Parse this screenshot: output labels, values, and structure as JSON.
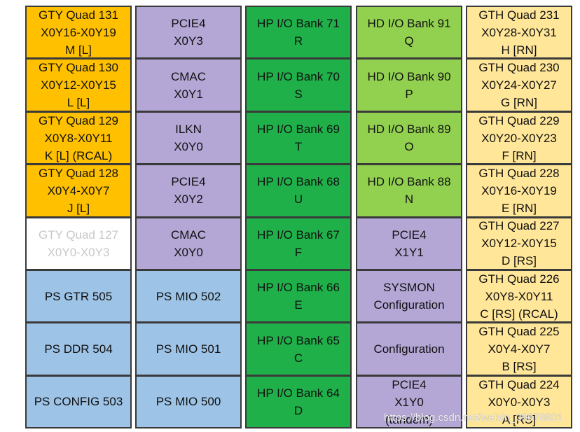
{
  "columns": [
    {
      "cells": [
        {
          "lines": [
            "GTY Quad 131",
            "X0Y16-X0Y19",
            "M  [L]"
          ],
          "color": "#ffc000",
          "text_color": "#111111"
        },
        {
          "lines": [
            "GTY Quad 130",
            "X0Y12-X0Y15",
            "L [L]"
          ],
          "color": "#ffc000",
          "text_color": "#111111"
        },
        {
          "lines": [
            "GTY Quad 129",
            "X0Y8-X0Y11",
            "K [L] (RCAL)"
          ],
          "color": "#ffc000",
          "text_color": "#111111"
        },
        {
          "lines": [
            "GTY Quad 128",
            "X0Y4-X0Y7",
            "J [L]"
          ],
          "color": "#ffc000",
          "text_color": "#111111"
        },
        {
          "lines": [
            "GTY Quad 127",
            "X0Y0-X0Y3"
          ],
          "color": "#ffffff",
          "text_color": "#c8c8c8"
        },
        {
          "lines": [
            "PS GTR 505"
          ],
          "color": "#9dc3e6",
          "text_color": "#111111"
        },
        {
          "lines": [
            "PS DDR 504"
          ],
          "color": "#9dc3e6",
          "text_color": "#111111"
        },
        {
          "lines": [
            "PS CONFIG 503"
          ],
          "color": "#9dc3e6",
          "text_color": "#111111"
        }
      ]
    },
    {
      "cells": [
        {
          "lines": [
            "PCIE4",
            "X0Y3"
          ],
          "color": "#b4a7d6",
          "text_color": "#111111"
        },
        {
          "lines": [
            "CMAC",
            "X0Y1"
          ],
          "color": "#b4a7d6",
          "text_color": "#111111"
        },
        {
          "lines": [
            "ILKN",
            "X0Y0"
          ],
          "color": "#b4a7d6",
          "text_color": "#111111"
        },
        {
          "lines": [
            "PCIE4",
            "X0Y2"
          ],
          "color": "#b4a7d6",
          "text_color": "#111111"
        },
        {
          "lines": [
            "CMAC",
            "X0Y0"
          ],
          "color": "#b4a7d6",
          "text_color": "#111111"
        },
        {
          "lines": [
            "PS MIO 502"
          ],
          "color": "#9dc3e6",
          "text_color": "#111111"
        },
        {
          "lines": [
            "PS MIO 501"
          ],
          "color": "#9dc3e6",
          "text_color": "#111111"
        },
        {
          "lines": [
            "PS MIO 500"
          ],
          "color": "#9dc3e6",
          "text_color": "#111111"
        }
      ]
    },
    {
      "cells": [
        {
          "lines": [
            "HP I/O Bank 71",
            "R"
          ],
          "color": "#1fb04a",
          "text_color": "#111111"
        },
        {
          "lines": [
            "HP I/O Bank 70",
            "S"
          ],
          "color": "#1fb04a",
          "text_color": "#111111"
        },
        {
          "lines": [
            "HP I/O Bank 69",
            "T"
          ],
          "color": "#1fb04a",
          "text_color": "#111111"
        },
        {
          "lines": [
            "HP I/O Bank 68",
            "U"
          ],
          "color": "#1fb04a",
          "text_color": "#111111"
        },
        {
          "lines": [
            "HP I/O Bank 67",
            "F"
          ],
          "color": "#1fb04a",
          "text_color": "#111111"
        },
        {
          "lines": [
            "HP I/O Bank 66",
            "E"
          ],
          "color": "#1fb04a",
          "text_color": "#111111"
        },
        {
          "lines": [
            "HP I/O Bank 65",
            "C"
          ],
          "color": "#1fb04a",
          "text_color": "#111111"
        },
        {
          "lines": [
            "HP I/O Bank 64",
            "D"
          ],
          "color": "#1fb04a",
          "text_color": "#111111"
        }
      ]
    },
    {
      "cells": [
        {
          "lines": [
            "HD I/O Bank 91",
            "Q"
          ],
          "color": "#92d050",
          "text_color": "#111111"
        },
        {
          "lines": [
            "HD I/O Bank 90",
            "P"
          ],
          "color": "#92d050",
          "text_color": "#111111"
        },
        {
          "lines": [
            "HD I/O Bank 89",
            "O"
          ],
          "color": "#92d050",
          "text_color": "#111111"
        },
        {
          "lines": [
            "HD I/O Bank 88",
            "N"
          ],
          "color": "#92d050",
          "text_color": "#111111"
        },
        {
          "lines": [
            "PCIE4",
            "X1Y1"
          ],
          "color": "#b4a7d6",
          "text_color": "#111111"
        },
        {
          "lines": [
            "SYSMON",
            "Configuration"
          ],
          "color": "#b4a7d6",
          "text_color": "#111111"
        },
        {
          "lines": [
            "Configuration"
          ],
          "color": "#b4a7d6",
          "text_color": "#111111"
        },
        {
          "lines": [
            "PCIE4",
            "X1Y0",
            "(tandem)"
          ],
          "color": "#b4a7d6",
          "text_color": "#111111"
        }
      ]
    },
    {
      "cells": [
        {
          "lines": [
            "GTH Quad 231",
            "X0Y28-X0Y31",
            "H [RN]"
          ],
          "color": "#ffe699",
          "text_color": "#111111"
        },
        {
          "lines": [
            "GTH Quad 230",
            "X0Y24-X0Y27",
            "G [RN]"
          ],
          "color": "#ffe699",
          "text_color": "#111111"
        },
        {
          "lines": [
            "GTH Quad 229",
            "X0Y20-X0Y23",
            "F [RN]"
          ],
          "color": "#ffe699",
          "text_color": "#111111"
        },
        {
          "lines": [
            "GTH Quad 228",
            "X0Y16-X0Y19",
            "E [RN]"
          ],
          "color": "#ffe699",
          "text_color": "#111111"
        },
        {
          "lines": [
            "GTH Quad 227",
            "X0Y12-X0Y15",
            "D [RS]"
          ],
          "color": "#ffe699",
          "text_color": "#111111"
        },
        {
          "lines": [
            "GTH Quad 226",
            "X0Y8-X0Y11",
            "C [RS] (RCAL)"
          ],
          "color": "#ffe699",
          "text_color": "#111111"
        },
        {
          "lines": [
            "GTH Quad 225",
            "X0Y4-X0Y7",
            "B [RS]"
          ],
          "color": "#ffe699",
          "text_color": "#111111"
        },
        {
          "lines": [
            "GTH Quad 224",
            "X0Y0-X0Y3",
            "A [RS]"
          ],
          "color": "#ffe699",
          "text_color": "#111111"
        }
      ]
    }
  ],
  "watermark": "https://blog.csdn.net/weixin_39678801"
}
